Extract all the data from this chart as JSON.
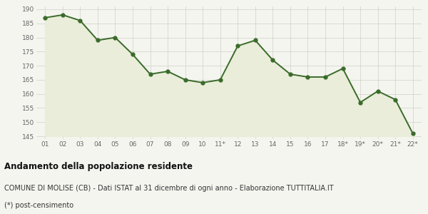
{
  "x_labels": [
    "01",
    "02",
    "03",
    "04",
    "05",
    "06",
    "07",
    "08",
    "09",
    "10",
    "11*",
    "12",
    "13",
    "14",
    "15",
    "16",
    "17",
    "18*",
    "19*",
    "20*",
    "21*",
    "22*"
  ],
  "y_values": [
    187,
    188,
    186,
    179,
    180,
    174,
    167,
    168,
    165,
    164,
    165,
    177,
    179,
    172,
    167,
    166,
    166,
    169,
    157,
    161,
    158,
    146
  ],
  "ylim": [
    144,
    191
  ],
  "yticks": [
    145,
    150,
    155,
    160,
    165,
    170,
    175,
    180,
    185,
    190
  ],
  "line_color": "#3a6b2a",
  "fill_color": "#e9edd9",
  "marker_size": 3.5,
  "line_width": 1.4,
  "bg_color": "#f5f5f0",
  "grid_color": "#d0d0c8",
  "title": "Andamento della popolazione residente",
  "subtitle": "COMUNE DI MOLISE (CB) - Dati ISTAT al 31 dicembre di ogni anno - Elaborazione TUTTITALIA.IT",
  "footnote": "(*) post-censimento",
  "title_fontsize": 8.5,
  "subtitle_fontsize": 7,
  "footnote_fontsize": 7,
  "tick_fontsize": 6.5,
  "title_fontweight": "bold"
}
